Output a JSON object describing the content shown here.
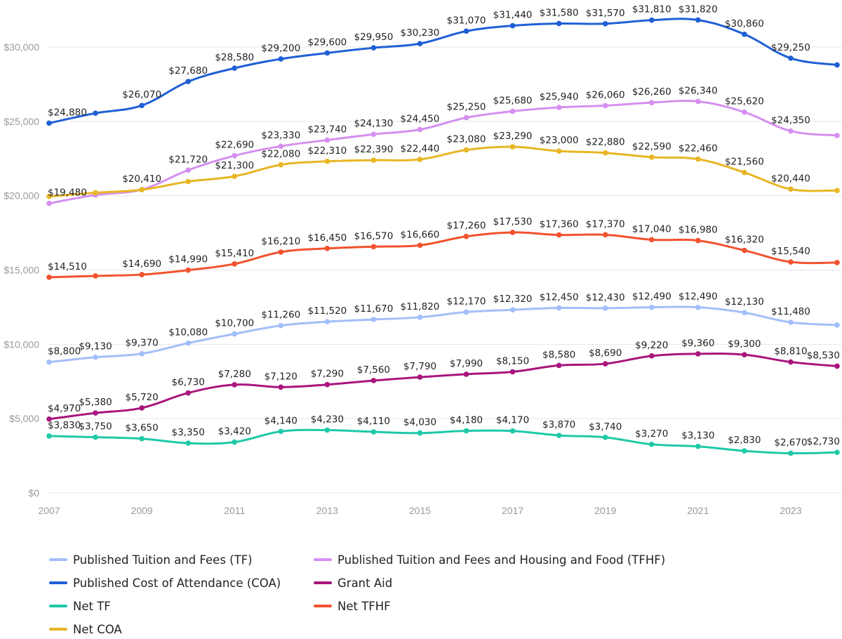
{
  "chart_data": {
    "type": "line",
    "title": "",
    "xlabel": "",
    "ylabel": "",
    "x": [
      2007,
      2008,
      2009,
      2010,
      2011,
      2012,
      2013,
      2014,
      2015,
      2016,
      2017,
      2018,
      2019,
      2020,
      2021,
      2022,
      2023,
      2024
    ],
    "x_tick_labels": [
      "2007",
      "2009",
      "2011",
      "2013",
      "2015",
      "2017",
      "2019",
      "2021",
      "2023"
    ],
    "y_tick_labels": [
      "$0",
      "$5,000",
      "$10,000",
      "$15,000",
      "$20,000",
      "$25,000",
      "$30,000"
    ],
    "ylim": [
      0,
      32500
    ],
    "grid": "horizontal",
    "legend_position": "bottom",
    "series": [
      {
        "name": "Published Tuition and Fees (TF)",
        "color": "#a3bffa",
        "values": [
          8800,
          9130,
          9370,
          10080,
          10700,
          11260,
          11520,
          11670,
          11820,
          12170,
          12320,
          12450,
          12430,
          12490,
          12490,
          12130,
          11480,
          11300
        ],
        "labels": [
          "$8,800",
          "$9,130",
          "$9,370",
          "$10,080",
          "$10,700",
          "$11,260",
          "$11,520",
          "$11,670",
          "$11,820",
          "$12,170",
          "$12,320",
          "$12,450",
          "$12,430",
          "$12,490",
          "$12,490",
          "$12,130",
          "$11,480",
          ""
        ]
      },
      {
        "name": "Published Tuition and Fees and Housing and Food (TFHF)",
        "color": "#d58ff0",
        "values": [
          19480,
          20050,
          20410,
          21720,
          22690,
          23330,
          23740,
          24130,
          24450,
          25250,
          25680,
          25940,
          26060,
          26260,
          26340,
          25620,
          24350,
          24050
        ],
        "labels": [
          "$19,480",
          "",
          "$20,410",
          "$21,720",
          "$22,690",
          "$23,330",
          "$23,740",
          "$24,130",
          "$24,450",
          "$25,250",
          "$25,680",
          "$25,940",
          "$26,060",
          "$26,260",
          "$26,340",
          "$25,620",
          "$24,350",
          ""
        ]
      },
      {
        "name": "Published Cost of Attendance (COA)",
        "color": "#1f5fd6",
        "values": [
          24880,
          25550,
          26070,
          27680,
          28580,
          29200,
          29600,
          29950,
          30230,
          31070,
          31440,
          31580,
          31570,
          31810,
          31820,
          30860,
          29250,
          28800
        ],
        "labels": [
          "$24,880",
          "",
          "$26,070",
          "$27,680",
          "$28,580",
          "$29,200",
          "$29,600",
          "$29,950",
          "$30,230",
          "$31,070",
          "$31,440",
          "$31,580",
          "$31,570",
          "$31,810",
          "$31,820",
          "$30,860",
          "$29,250",
          ""
        ]
      },
      {
        "name": "Grant Aid",
        "color": "#a8157c",
        "values": [
          4970,
          5380,
          5720,
          6730,
          7280,
          7120,
          7290,
          7560,
          7790,
          7990,
          8150,
          8580,
          8690,
          9220,
          9360,
          9300,
          8810,
          8530
        ],
        "labels": [
          "$4,970",
          "$5,380",
          "$5,720",
          "$6,730",
          "$7,280",
          "$7,120",
          "$7,290",
          "$7,560",
          "$7,790",
          "$7,990",
          "$8,150",
          "$8,580",
          "$8,690",
          "$9,220",
          "$9,360",
          "$9,300",
          "$8,810",
          "$8,530"
        ]
      },
      {
        "name": "Net TF",
        "color": "#1fc9a8",
        "values": [
          3830,
          3750,
          3650,
          3350,
          3420,
          4140,
          4230,
          4110,
          4030,
          4180,
          4170,
          3870,
          3740,
          3270,
          3130,
          2830,
          2670,
          2730
        ],
        "labels": [
          "$3,830",
          "$3,750",
          "$3,650",
          "$3,350",
          "$3,420",
          "$4,140",
          "$4,230",
          "$4,110",
          "$4,030",
          "$4,180",
          "$4,170",
          "$3,870",
          "$3,740",
          "$3,270",
          "$3,130",
          "$2,830",
          "$2,670",
          "$2,730"
        ]
      },
      {
        "name": "Net TFHF",
        "color": "#f2522e",
        "values": [
          14510,
          14600,
          14690,
          14990,
          15410,
          16210,
          16450,
          16570,
          16660,
          17260,
          17530,
          17360,
          17370,
          17040,
          16980,
          16320,
          15540,
          15500
        ],
        "labels": [
          "$14,510",
          "",
          "$14,690",
          "$14,990",
          "$15,410",
          "$16,210",
          "$16,450",
          "$16,570",
          "$16,660",
          "$17,260",
          "$17,530",
          "$17,360",
          "$17,370",
          "$17,040",
          "$16,980",
          "$16,320",
          "$15,540",
          ""
        ]
      },
      {
        "name": "Net COA",
        "color": "#e8b624",
        "values": [
          19950,
          20200,
          20400,
          20950,
          21300,
          22080,
          22310,
          22390,
          22440,
          23080,
          23290,
          23000,
          22880,
          22590,
          22460,
          21560,
          20440,
          20350
        ],
        "labels": [
          "",
          "",
          "",
          "",
          "$21,300",
          "$22,080",
          "$22,310",
          "$22,390",
          "$22,440",
          "$23,080",
          "$23,290",
          "$23,000",
          "$22,880",
          "$22,590",
          "$22,460",
          "$21,560",
          "$20,440",
          ""
        ]
      }
    ],
    "legend": [
      "Published Tuition and Fees (TF)",
      "Published Tuition and Fees and Housing and Food (TFHF)",
      "Published Cost of Attendance (COA)",
      "Grant Aid",
      "Net TF",
      "Net TFHF",
      "Net COA"
    ]
  }
}
